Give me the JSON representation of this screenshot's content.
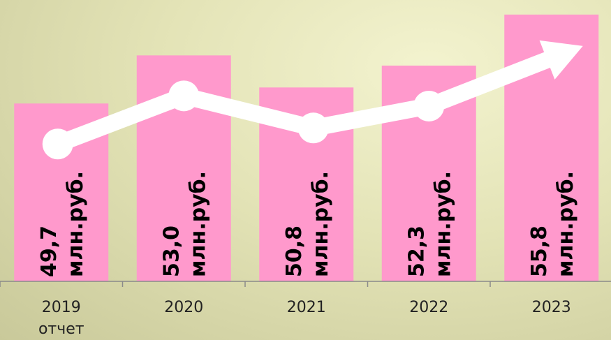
{
  "chart_data": {
    "type": "bar",
    "categories": [
      "2019",
      "2020",
      "2021",
      "2022",
      "2023"
    ],
    "category_sublabels": [
      "отчет",
      "",
      "",
      "",
      ""
    ],
    "values": [
      49.7,
      53.0,
      50.8,
      52.3,
      55.8
    ],
    "value_labels": [
      "49,7",
      "53,0",
      "50,8",
      "52,3",
      "55,8"
    ],
    "unit": "млн.руб.",
    "ylim": [
      37.5,
      56.8
    ],
    "trend_arrow": true,
    "grid": false,
    "legend": "none",
    "title": "",
    "xlabel": "",
    "ylabel": ""
  },
  "colors": {
    "bar": "#ff99cc",
    "trend": "#ffffff",
    "axis": "#8a8a8a"
  }
}
